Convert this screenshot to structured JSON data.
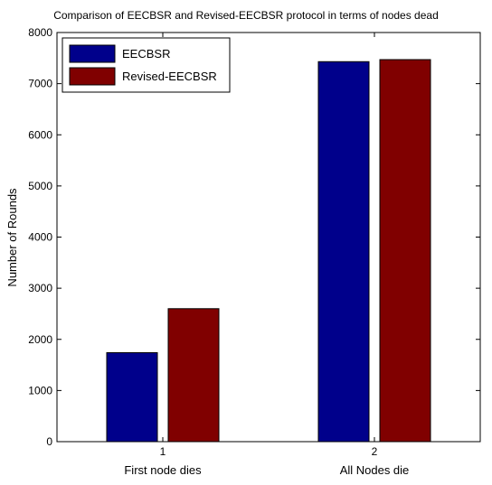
{
  "chart_data": {
    "type": "bar",
    "title": "Comparison of EECBSR and Revised-EECBSR protocol in terms of nodes dead",
    "xlabel": "",
    "ylabel": "Number of Rounds",
    "categories": [
      "1",
      "2"
    ],
    "category_sublabels": [
      "First node dies",
      "All Nodes die"
    ],
    "series": [
      {
        "name": "EECBSR",
        "color": "#00008b",
        "values": [
          1740,
          7430
        ]
      },
      {
        "name": "Revised-EECBSR",
        "color": "#800000",
        "values": [
          2600,
          7470
        ]
      }
    ],
    "ylim": [
      0,
      8000
    ],
    "yticks": [
      0,
      1000,
      2000,
      3000,
      4000,
      5000,
      6000,
      7000,
      8000
    ],
    "grid": false,
    "legend_position": "top-left"
  }
}
